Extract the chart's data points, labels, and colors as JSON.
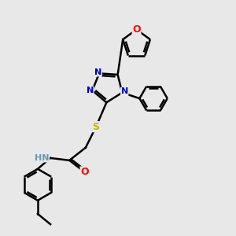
{
  "bg_color": "#e8e8e8",
  "bond_color": "#000000",
  "bond_width": 1.8,
  "atom_colors": {
    "N": "#0000cc",
    "O": "#ff0000",
    "S": "#bbbb00",
    "H": "#6699aa"
  },
  "font_size": 8,
  "fig_size": [
    3.0,
    3.0
  ],
  "dpi": 100,
  "xlim": [
    0,
    10
  ],
  "ylim": [
    0,
    10
  ]
}
